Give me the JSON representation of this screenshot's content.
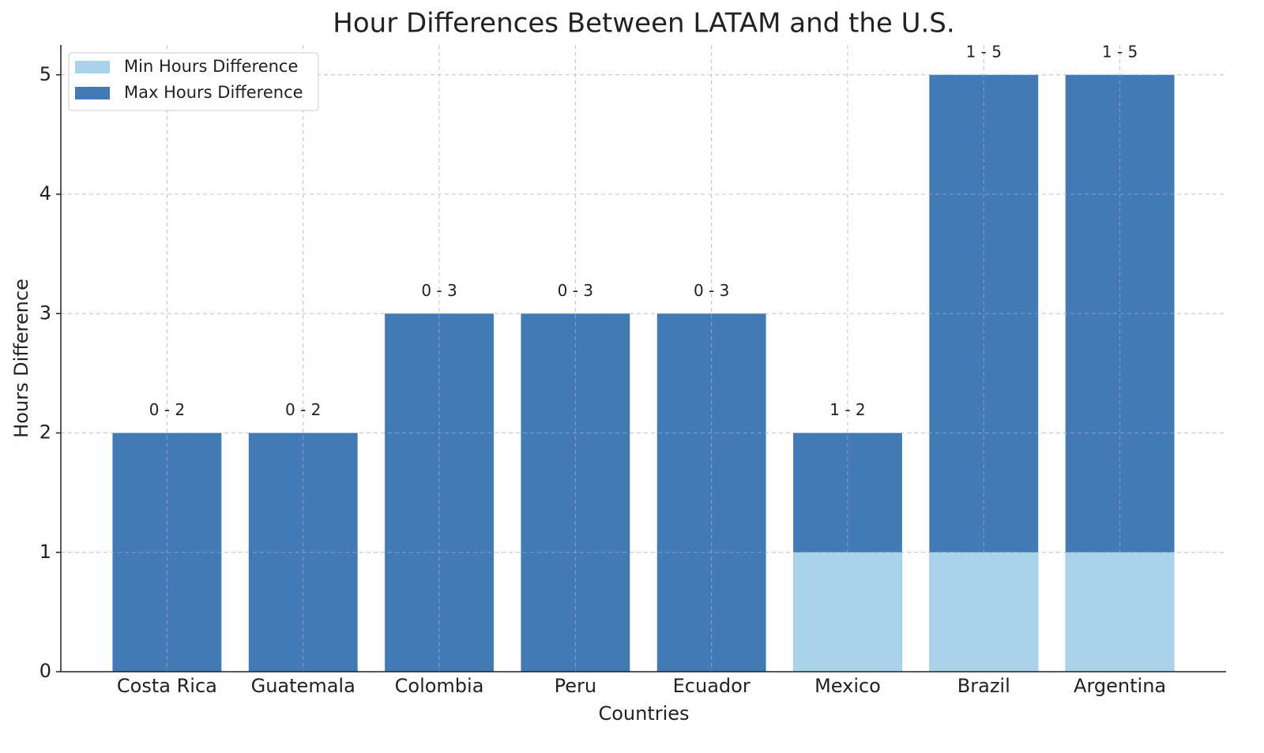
{
  "chart_data": {
    "type": "bar",
    "title": "Hour Differences Between LATAM and the U.S.",
    "x_label": "Countries",
    "y_label": "Hours Difference",
    "categories": [
      "Costa Rica",
      "Guatemala",
      "Colombia",
      "Peru",
      "Ecuador",
      "Mexico",
      "Brazil",
      "Argentina"
    ],
    "series": [
      {
        "name": "Min Hours Difference",
        "color": "#a9d3eb",
        "values": [
          0,
          0,
          0,
          0,
          0,
          1,
          1,
          1
        ]
      },
      {
        "name": "Max Hours Difference",
        "color": "#417ab5",
        "values": [
          2,
          2,
          3,
          3,
          3,
          2,
          5,
          5
        ],
        "value_labels": [
          "0 - 2",
          "0 - 2",
          "0 - 3",
          "0 - 3",
          "0 - 3",
          "1 - 2",
          "1 - 5",
          "1 - 5"
        ]
      }
    ],
    "overlay": true,
    "ylim": [
      0,
      5.25
    ],
    "yticks": [
      0,
      1,
      2,
      3,
      4,
      5
    ],
    "grid": true,
    "legend": "upper-left"
  }
}
